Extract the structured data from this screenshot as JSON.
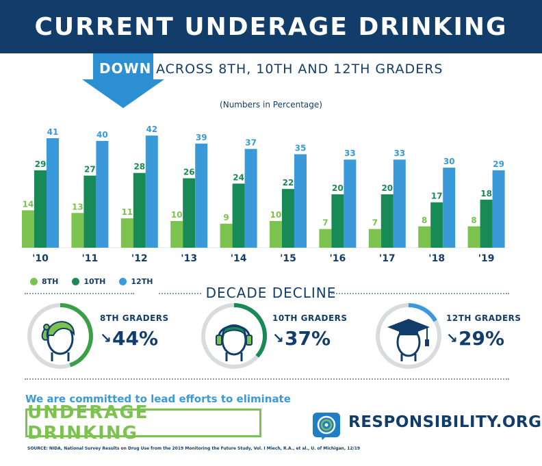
{
  "header": {
    "title": "CURRENT UNDERAGE DRINKING"
  },
  "subheader": {
    "down": "DOWN",
    "text": "ACROSS 8TH, 10TH AND 12TH GRADERS"
  },
  "note": "(Numbers in Percentage)",
  "colors": {
    "navy": "#123d6a",
    "green8": "#7cc24e",
    "green10": "#178a55",
    "blue12": "#3a9ad9"
  },
  "chart_data": {
    "type": "bar",
    "categories": [
      "'10",
      "'11",
      "'12",
      "'13",
      "'14",
      "'15",
      "'16",
      "'17",
      "'18",
      "'19"
    ],
    "series": [
      {
        "name": "8TH",
        "values": [
          14,
          13,
          11,
          10,
          9,
          10,
          7,
          7,
          8,
          8
        ]
      },
      {
        "name": "10TH",
        "values": [
          29,
          27,
          28,
          26,
          24,
          22,
          20,
          20,
          17,
          18
        ]
      },
      {
        "name": "12TH",
        "values": [
          41,
          40,
          42,
          39,
          37,
          35,
          33,
          33,
          30,
          29
        ]
      }
    ],
    "ylim": [
      0,
      45
    ],
    "legend": "bottom-left"
  },
  "legend": [
    {
      "label": "8TH",
      "color": "#7cc24e"
    },
    {
      "label": "10TH",
      "color": "#178a55"
    },
    {
      "label": "12TH",
      "color": "#3a9ad9"
    }
  ],
  "decline": {
    "title": "DECADE DECLINE",
    "items": [
      {
        "label": "8TH GRADERS",
        "value": "44%",
        "icon": "girl-face-icon",
        "color": "#3aa048"
      },
      {
        "label": "10TH GRADERS",
        "value": "37%",
        "icon": "headphones-face-icon",
        "color": "#178a55"
      },
      {
        "label": "12TH GRADERS",
        "value": "29%",
        "icon": "graduate-face-icon",
        "color": "#3a9ad9"
      }
    ]
  },
  "footer": {
    "commit": "We are committed to lead efforts to eliminate",
    "campaign": "UNDERAGE DRINKING",
    "brand": "RESPONSIBILITY.ORG",
    "source": "SOURCE: NIDA, National Survey Results on Drug Use from the 2019 Monitoring the Future Study, Vol. I Miech, R.A., et al., U. of Michigan, 12/19"
  }
}
